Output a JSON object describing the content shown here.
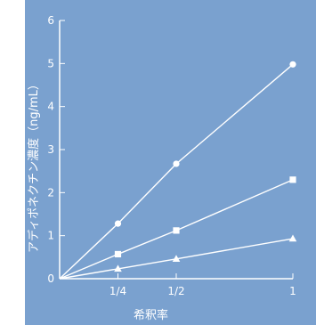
{
  "chart_data": {
    "type": "line",
    "xlabel": "希釈率",
    "ylabel": "アディポネクチン濃度（ng/mL）",
    "x_ticks": [
      "1/4",
      "1/2",
      "1"
    ],
    "y_ticks": [
      "0",
      "1",
      "2",
      "3",
      "4",
      "5",
      "6"
    ],
    "ylim": [
      0,
      6
    ],
    "x": [
      0,
      0.25,
      0.5,
      1
    ],
    "series": [
      {
        "marker": "circle",
        "values": [
          0,
          1.28,
          2.67,
          4.98
        ]
      },
      {
        "marker": "square",
        "values": [
          0,
          0.57,
          1.12,
          2.3
        ]
      },
      {
        "marker": "triangle",
        "values": [
          0,
          0.23,
          0.46,
          0.93
        ]
      }
    ],
    "grid": false,
    "colors": {
      "background": "#7aa1cf",
      "foreground": "#ffffff"
    }
  }
}
